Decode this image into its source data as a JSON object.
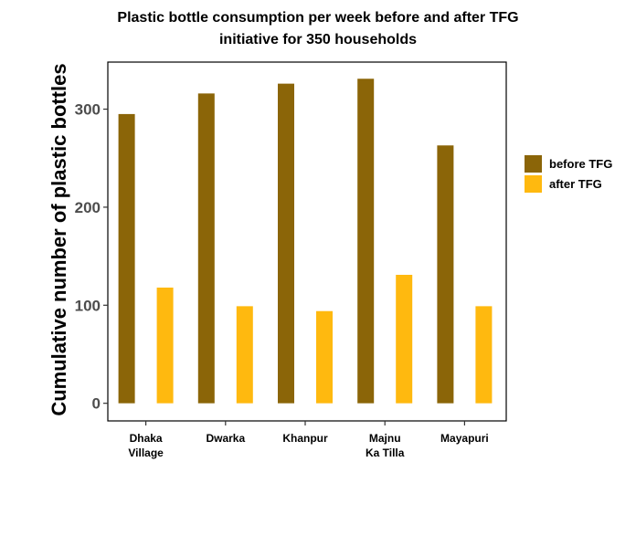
{
  "chart_data": {
    "type": "bar",
    "title": [
      "Plastic bottle consumption per week before and after TFG",
      "initiative for 350 households"
    ],
    "xlabel": "",
    "ylabel": "Cumulative number of plastic bottles",
    "ylim": [
      -18,
      348
    ],
    "yticks": [
      0,
      100,
      200,
      300
    ],
    "categories": [
      [
        "Dhaka",
        "Village"
      ],
      [
        "Dwarka"
      ],
      [
        "Khanpur"
      ],
      [
        "Majnu",
        "Ka Tilla"
      ],
      [
        "Mayapuri"
      ]
    ],
    "series": [
      {
        "name": "before TFG",
        "color": "#8b6508",
        "values": [
          295,
          316,
          326,
          331,
          263
        ]
      },
      {
        "name": "after TFG",
        "color": "#ffb90f",
        "values": [
          118,
          99,
          94,
          131,
          99
        ]
      }
    ],
    "legend_position": "right",
    "grid": false
  }
}
